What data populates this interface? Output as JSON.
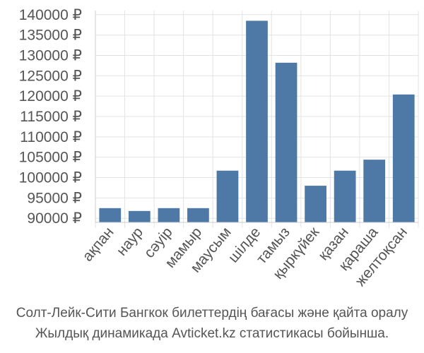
{
  "chart_data": {
    "type": "bar",
    "title": "",
    "xlabel": "",
    "ylabel": "",
    "currency_suffix": " ₽",
    "categories": [
      "ақпан",
      "наур",
      "сәуір",
      "мамыр",
      "маусым",
      "шілде",
      "тамыз",
      "қыркүйек",
      "қазан",
      "қараша",
      "желтоқсан"
    ],
    "values": [
      92500,
      91800,
      92500,
      92500,
      101700,
      138500,
      128200,
      98000,
      101700,
      104400,
      120400
    ],
    "ylim": [
      89000,
      141000
    ],
    "yticks": [
      90000,
      95000,
      100000,
      105000,
      110000,
      115000,
      120000,
      125000,
      130000,
      135000,
      140000
    ],
    "grid": true,
    "bar_color": "#4e79a7"
  },
  "caption": {
    "line1": "Солт-Лейк-Сити Бангкок билеттердің бағасы және қайта оралу",
    "line2": "Жылдық динамикада Avticket.kz статистикасы бойынша."
  }
}
